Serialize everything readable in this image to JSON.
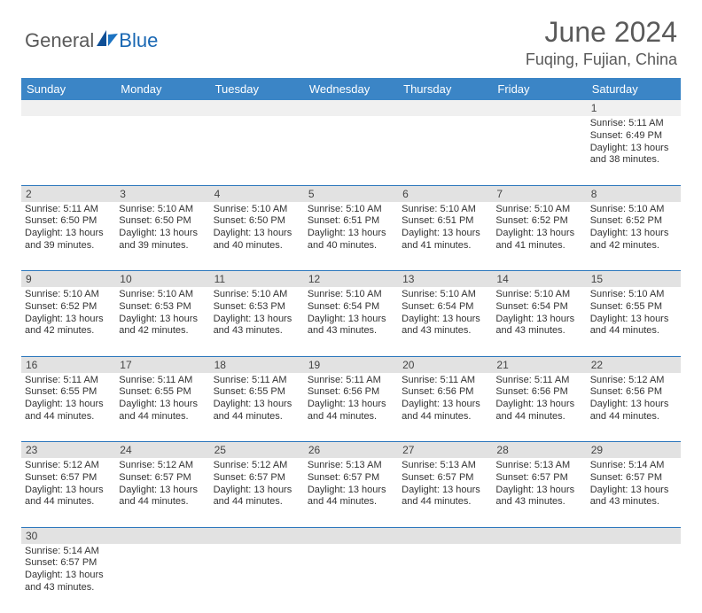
{
  "logo": {
    "general": "General",
    "blue": "Blue"
  },
  "title": "June 2024",
  "location": "Fuqing, Fujian, China",
  "colors": {
    "header_bg": "#3b85c6",
    "daynum_bg": "#e2e2e2",
    "rule": "#2e78bd",
    "text": "#333333",
    "title_text": "#5a5a5a"
  },
  "day_headers": [
    "Sunday",
    "Monday",
    "Tuesday",
    "Wednesday",
    "Thursday",
    "Friday",
    "Saturday"
  ],
  "weeks": [
    {
      "nums": [
        "",
        "",
        "",
        "",
        "",
        "",
        "1"
      ],
      "cells": [
        null,
        null,
        null,
        null,
        null,
        null,
        {
          "sr": "Sunrise: 5:11 AM",
          "ss": "Sunset: 6:49 PM",
          "d1": "Daylight: 13 hours",
          "d2": "and 38 minutes."
        }
      ]
    },
    {
      "nums": [
        "2",
        "3",
        "4",
        "5",
        "6",
        "7",
        "8"
      ],
      "cells": [
        {
          "sr": "Sunrise: 5:11 AM",
          "ss": "Sunset: 6:50 PM",
          "d1": "Daylight: 13 hours",
          "d2": "and 39 minutes."
        },
        {
          "sr": "Sunrise: 5:10 AM",
          "ss": "Sunset: 6:50 PM",
          "d1": "Daylight: 13 hours",
          "d2": "and 39 minutes."
        },
        {
          "sr": "Sunrise: 5:10 AM",
          "ss": "Sunset: 6:50 PM",
          "d1": "Daylight: 13 hours",
          "d2": "and 40 minutes."
        },
        {
          "sr": "Sunrise: 5:10 AM",
          "ss": "Sunset: 6:51 PM",
          "d1": "Daylight: 13 hours",
          "d2": "and 40 minutes."
        },
        {
          "sr": "Sunrise: 5:10 AM",
          "ss": "Sunset: 6:51 PM",
          "d1": "Daylight: 13 hours",
          "d2": "and 41 minutes."
        },
        {
          "sr": "Sunrise: 5:10 AM",
          "ss": "Sunset: 6:52 PM",
          "d1": "Daylight: 13 hours",
          "d2": "and 41 minutes."
        },
        {
          "sr": "Sunrise: 5:10 AM",
          "ss": "Sunset: 6:52 PM",
          "d1": "Daylight: 13 hours",
          "d2": "and 42 minutes."
        }
      ]
    },
    {
      "nums": [
        "9",
        "10",
        "11",
        "12",
        "13",
        "14",
        "15"
      ],
      "cells": [
        {
          "sr": "Sunrise: 5:10 AM",
          "ss": "Sunset: 6:52 PM",
          "d1": "Daylight: 13 hours",
          "d2": "and 42 minutes."
        },
        {
          "sr": "Sunrise: 5:10 AM",
          "ss": "Sunset: 6:53 PM",
          "d1": "Daylight: 13 hours",
          "d2": "and 42 minutes."
        },
        {
          "sr": "Sunrise: 5:10 AM",
          "ss": "Sunset: 6:53 PM",
          "d1": "Daylight: 13 hours",
          "d2": "and 43 minutes."
        },
        {
          "sr": "Sunrise: 5:10 AM",
          "ss": "Sunset: 6:54 PM",
          "d1": "Daylight: 13 hours",
          "d2": "and 43 minutes."
        },
        {
          "sr": "Sunrise: 5:10 AM",
          "ss": "Sunset: 6:54 PM",
          "d1": "Daylight: 13 hours",
          "d2": "and 43 minutes."
        },
        {
          "sr": "Sunrise: 5:10 AM",
          "ss": "Sunset: 6:54 PM",
          "d1": "Daylight: 13 hours",
          "d2": "and 43 minutes."
        },
        {
          "sr": "Sunrise: 5:10 AM",
          "ss": "Sunset: 6:55 PM",
          "d1": "Daylight: 13 hours",
          "d2": "and 44 minutes."
        }
      ]
    },
    {
      "nums": [
        "16",
        "17",
        "18",
        "19",
        "20",
        "21",
        "22"
      ],
      "cells": [
        {
          "sr": "Sunrise: 5:11 AM",
          "ss": "Sunset: 6:55 PM",
          "d1": "Daylight: 13 hours",
          "d2": "and 44 minutes."
        },
        {
          "sr": "Sunrise: 5:11 AM",
          "ss": "Sunset: 6:55 PM",
          "d1": "Daylight: 13 hours",
          "d2": "and 44 minutes."
        },
        {
          "sr": "Sunrise: 5:11 AM",
          "ss": "Sunset: 6:55 PM",
          "d1": "Daylight: 13 hours",
          "d2": "and 44 minutes."
        },
        {
          "sr": "Sunrise: 5:11 AM",
          "ss": "Sunset: 6:56 PM",
          "d1": "Daylight: 13 hours",
          "d2": "and 44 minutes."
        },
        {
          "sr": "Sunrise: 5:11 AM",
          "ss": "Sunset: 6:56 PM",
          "d1": "Daylight: 13 hours",
          "d2": "and 44 minutes."
        },
        {
          "sr": "Sunrise: 5:11 AM",
          "ss": "Sunset: 6:56 PM",
          "d1": "Daylight: 13 hours",
          "d2": "and 44 minutes."
        },
        {
          "sr": "Sunrise: 5:12 AM",
          "ss": "Sunset: 6:56 PM",
          "d1": "Daylight: 13 hours",
          "d2": "and 44 minutes."
        }
      ]
    },
    {
      "nums": [
        "23",
        "24",
        "25",
        "26",
        "27",
        "28",
        "29"
      ],
      "cells": [
        {
          "sr": "Sunrise: 5:12 AM",
          "ss": "Sunset: 6:57 PM",
          "d1": "Daylight: 13 hours",
          "d2": "and 44 minutes."
        },
        {
          "sr": "Sunrise: 5:12 AM",
          "ss": "Sunset: 6:57 PM",
          "d1": "Daylight: 13 hours",
          "d2": "and 44 minutes."
        },
        {
          "sr": "Sunrise: 5:12 AM",
          "ss": "Sunset: 6:57 PM",
          "d1": "Daylight: 13 hours",
          "d2": "and 44 minutes."
        },
        {
          "sr": "Sunrise: 5:13 AM",
          "ss": "Sunset: 6:57 PM",
          "d1": "Daylight: 13 hours",
          "d2": "and 44 minutes."
        },
        {
          "sr": "Sunrise: 5:13 AM",
          "ss": "Sunset: 6:57 PM",
          "d1": "Daylight: 13 hours",
          "d2": "and 44 minutes."
        },
        {
          "sr": "Sunrise: 5:13 AM",
          "ss": "Sunset: 6:57 PM",
          "d1": "Daylight: 13 hours",
          "d2": "and 43 minutes."
        },
        {
          "sr": "Sunrise: 5:14 AM",
          "ss": "Sunset: 6:57 PM",
          "d1": "Daylight: 13 hours",
          "d2": "and 43 minutes."
        }
      ]
    },
    {
      "nums": [
        "30",
        "",
        "",
        "",
        "",
        "",
        ""
      ],
      "cells": [
        {
          "sr": "Sunrise: 5:14 AM",
          "ss": "Sunset: 6:57 PM",
          "d1": "Daylight: 13 hours",
          "d2": "and 43 minutes."
        },
        null,
        null,
        null,
        null,
        null,
        null
      ]
    }
  ]
}
